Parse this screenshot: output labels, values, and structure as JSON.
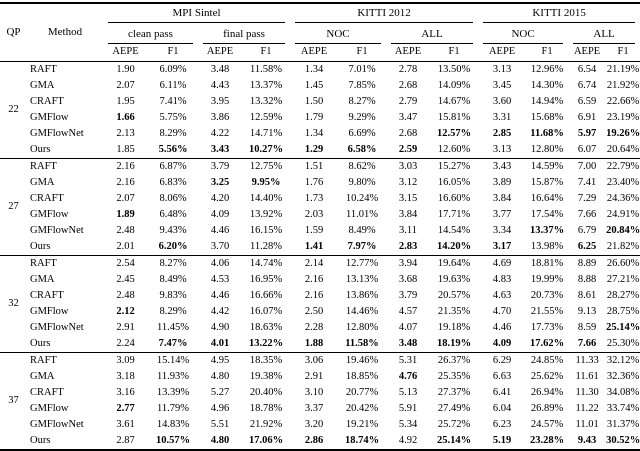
{
  "page": {
    "background": "#ffffff",
    "text_color": "#000000",
    "rule_color": "#000000"
  },
  "table": {
    "corner": {
      "qp": "QP",
      "method": "Method"
    },
    "groups": [
      {
        "label": "MPI Sintel",
        "subgroups": [
          "clean pass",
          "final pass"
        ]
      },
      {
        "label": "KITTI 2012",
        "subgroups": [
          "NOC",
          "ALL"
        ]
      },
      {
        "label": "KITTI 2015",
        "subgroups": [
          "NOC",
          "ALL"
        ]
      }
    ],
    "metric_labels": [
      "AEPE",
      "F1"
    ],
    "blocks": [
      {
        "qp": "22",
        "rows": [
          {
            "method": "RAFT",
            "values": [
              "1.90",
              "6.09%",
              "3.48",
              "11.58%",
              "1.34",
              "7.01%",
              "2.78",
              "13.50%",
              "3.13",
              "12.96%",
              "6.54",
              "21.19%"
            ],
            "bold": []
          },
          {
            "method": "GMA",
            "values": [
              "2.07",
              "6.11%",
              "4.43",
              "13.37%",
              "1.45",
              "7.85%",
              "2.68",
              "14.09%",
              "3.45",
              "14.30%",
              "6.74",
              "21.92%"
            ],
            "bold": []
          },
          {
            "method": "CRAFT",
            "values": [
              "1.95",
              "7.41%",
              "3.95",
              "13.32%",
              "1.50",
              "8.27%",
              "2.79",
              "14.67%",
              "3.60",
              "14.94%",
              "6.59",
              "22.66%"
            ],
            "bold": []
          },
          {
            "method": "GMFlow",
            "values": [
              "1.66",
              "5.75%",
              "3.86",
              "12.59%",
              "1.79",
              "9.29%",
              "3.47",
              "15.81%",
              "3.31",
              "15.68%",
              "6.91",
              "23.19%"
            ],
            "bold": [
              0
            ]
          },
          {
            "method": "GMFlowNet",
            "values": [
              "2.13",
              "8.29%",
              "4.22",
              "14.71%",
              "1.34",
              "6.69%",
              "2.68",
              "12.57%",
              "2.85",
              "11.68%",
              "5.97",
              "19.26%"
            ],
            "bold": [
              7,
              8,
              9,
              10,
              11
            ]
          },
          {
            "method": "Ours",
            "values": [
              "1.85",
              "5.56%",
              "3.43",
              "10.27%",
              "1.29",
              "6.58%",
              "2.59",
              "12.60%",
              "3.13",
              "12.80%",
              "6.07",
              "20.64%"
            ],
            "bold": [
              1,
              2,
              3,
              4,
              5,
              6
            ]
          }
        ]
      },
      {
        "qp": "27",
        "rows": [
          {
            "method": "RAFT",
            "values": [
              "2.16",
              "6.87%",
              "3.79",
              "12.75%",
              "1.51",
              "8.62%",
              "3.03",
              "15.27%",
              "3.43",
              "14.59%",
              "7.00",
              "22.79%"
            ],
            "bold": []
          },
          {
            "method": "GMA",
            "values": [
              "2.16",
              "6.83%",
              "3.25",
              "9.95%",
              "1.76",
              "9.80%",
              "3.12",
              "16.05%",
              "3.89",
              "15.87%",
              "7.41",
              "23.40%"
            ],
            "bold": [
              2,
              3
            ]
          },
          {
            "method": "CRAFT",
            "values": [
              "2.07",
              "8.06%",
              "4.20",
              "14.40%",
              "1.73",
              "10.24%",
              "3.15",
              "16.60%",
              "3.84",
              "16.64%",
              "7.29",
              "24.36%"
            ],
            "bold": []
          },
          {
            "method": "GMFlow",
            "values": [
              "1.89",
              "6.48%",
              "4.09",
              "13.92%",
              "2.03",
              "11.01%",
              "3.84",
              "17.71%",
              "3.77",
              "17.54%",
              "7.66",
              "24.91%"
            ],
            "bold": [
              0
            ]
          },
          {
            "method": "GMFlowNet",
            "values": [
              "2.48",
              "9.43%",
              "4.46",
              "16.15%",
              "1.59",
              "8.49%",
              "3.11",
              "14.54%",
              "3.34",
              "13.37%",
              "6.79",
              "20.84%"
            ],
            "bold": [
              9,
              11
            ]
          },
          {
            "method": "Ours",
            "values": [
              "2.01",
              "6.20%",
              "3.70",
              "11.28%",
              "1.41",
              "7.97%",
              "2.83",
              "14.20%",
              "3.17",
              "13.98%",
              "6.25",
              "21.82%"
            ],
            "bold": [
              1,
              4,
              5,
              6,
              7,
              8,
              10
            ]
          }
        ]
      },
      {
        "qp": "32",
        "rows": [
          {
            "method": "RAFT",
            "values": [
              "2.54",
              "8.27%",
              "4.06",
              "14.74%",
              "2.14",
              "12.77%",
              "3.94",
              "19.64%",
              "4.69",
              "18.81%",
              "8.89",
              "26.60%"
            ],
            "bold": []
          },
          {
            "method": "GMA",
            "values": [
              "2.45",
              "8.49%",
              "4.53",
              "16.95%",
              "2.16",
              "13.13%",
              "3.68",
              "19.63%",
              "4.83",
              "19.99%",
              "8.88",
              "27.21%"
            ],
            "bold": []
          },
          {
            "method": "CRAFT",
            "values": [
              "2.48",
              "9.83%",
              "4.46",
              "16.66%",
              "2.16",
              "13.86%",
              "3.79",
              "20.57%",
              "4.63",
              "20.73%",
              "8.61",
              "28.27%"
            ],
            "bold": []
          },
          {
            "method": "GMFlow",
            "values": [
              "2.12",
              "8.29%",
              "4.42",
              "16.07%",
              "2.50",
              "14.46%",
              "4.57",
              "21.35%",
              "4.70",
              "21.55%",
              "9.13",
              "28.75%"
            ],
            "bold": [
              0
            ]
          },
          {
            "method": "GMFlowNet",
            "values": [
              "2.91",
              "11.45%",
              "4.90",
              "18.63%",
              "2.28",
              "12.80%",
              "4.07",
              "19.18%",
              "4.46",
              "17.73%",
              "8.59",
              "25.14%"
            ],
            "bold": [
              11
            ]
          },
          {
            "method": "Ours",
            "values": [
              "2.24",
              "7.47%",
              "4.01",
              "13.22%",
              "1.88",
              "11.58%",
              "3.48",
              "18.19%",
              "4.09",
              "17.62%",
              "7.66",
              "25.30%"
            ],
            "bold": [
              1,
              2,
              3,
              4,
              5,
              6,
              7,
              8,
              9,
              10
            ]
          }
        ]
      },
      {
        "qp": "37",
        "rows": [
          {
            "method": "RAFT",
            "values": [
              "3.09",
              "15.14%",
              "4.95",
              "18.35%",
              "3.06",
              "19.46%",
              "5.31",
              "26.37%",
              "6.29",
              "24.85%",
              "11.33",
              "32.12%"
            ],
            "bold": []
          },
          {
            "method": "GMA",
            "values": [
              "3.18",
              "11.93%",
              "4.80",
              "19.38%",
              "2.91",
              "18.85%",
              "4.76",
              "25.35%",
              "6.63",
              "25.62%",
              "11.61",
              "32.36%"
            ],
            "bold": [
              6
            ]
          },
          {
            "method": "CRAFT",
            "values": [
              "3.16",
              "13.39%",
              "5.27",
              "20.40%",
              "3.10",
              "20.77%",
              "5.13",
              "27.37%",
              "6.41",
              "26.94%",
              "11.30",
              "34.08%"
            ],
            "bold": []
          },
          {
            "method": "GMFlow",
            "values": [
              "2.77",
              "11.79%",
              "4.96",
              "18.78%",
              "3.37",
              "20.42%",
              "5.91",
              "27.49%",
              "6.04",
              "26.89%",
              "11.22",
              "33.74%"
            ],
            "bold": [
              0
            ]
          },
          {
            "method": "GMFlowNet",
            "values": [
              "3.61",
              "14.83%",
              "5.51",
              "21.92%",
              "3.20",
              "19.21%",
              "5.34",
              "25.72%",
              "6.23",
              "24.57%",
              "11.01",
              "31.37%"
            ],
            "bold": []
          },
          {
            "method": "Ours",
            "values": [
              "2.87",
              "10.57%",
              "4.80",
              "17.06%",
              "2.86",
              "18.74%",
              "4.92",
              "25.14%",
              "5.19",
              "23.28%",
              "9.43",
              "30.52%"
            ],
            "bold": [
              1,
              2,
              3,
              4,
              5,
              7,
              8,
              9,
              10,
              11
            ]
          }
        ]
      }
    ]
  }
}
